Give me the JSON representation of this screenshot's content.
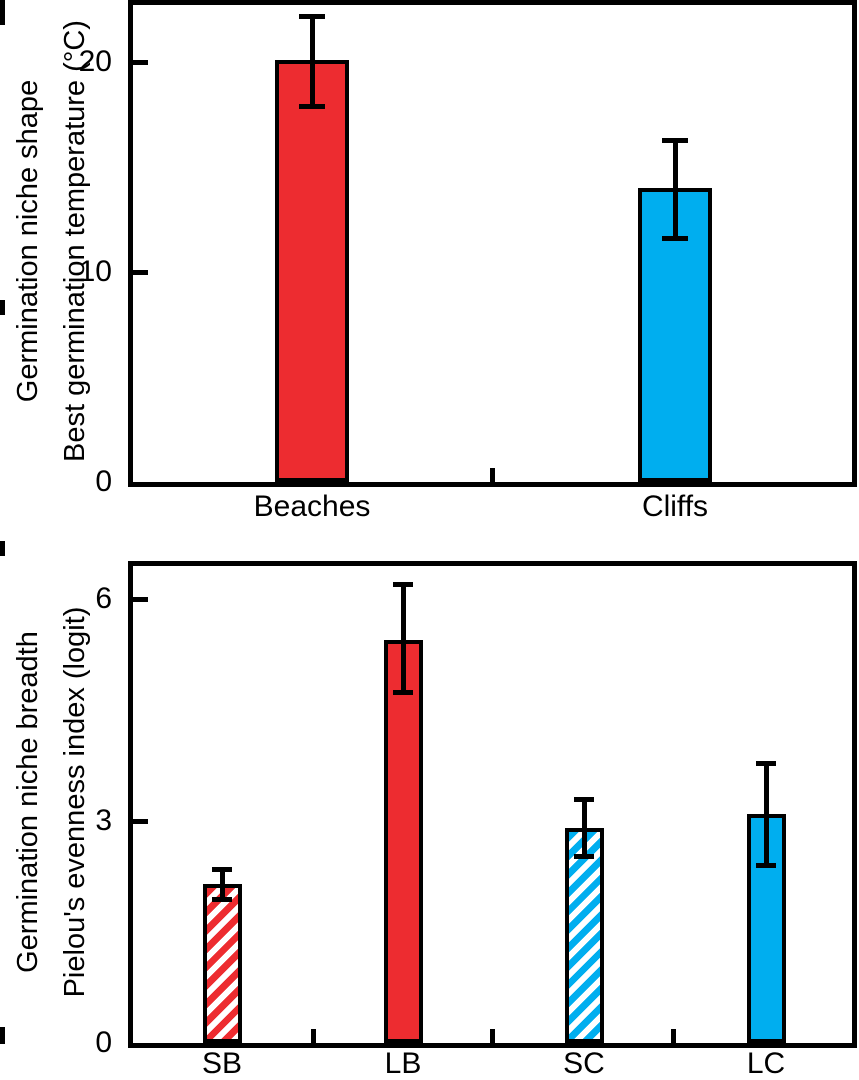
{
  "figure": {
    "background": "#ffffff",
    "ink": "#000000",
    "beach_red": "#ED2C30",
    "cliff_blue": "#00AEEF"
  },
  "chart_data": [
    {
      "type": "bar",
      "panel": "top",
      "title": "",
      "xlabel": "",
      "ylabel_lines": [
        "Germination niche shape",
        "Best germination temperature (°C)"
      ],
      "categories": [
        "Beaches",
        "Cliffs"
      ],
      "values": [
        20.1,
        14.0
      ],
      "errors_plus": [
        2.1,
        2.3
      ],
      "errors_minus": [
        2.2,
        2.4
      ],
      "bar_styles": [
        "solid-red",
        "solid-blue"
      ],
      "yticks": [
        0,
        10,
        20
      ],
      "ylim": [
        0,
        22.9
      ],
      "grid": false,
      "legend": null
    },
    {
      "type": "bar",
      "panel": "bottom",
      "title": "",
      "xlabel": "",
      "ylabel_lines": [
        "Germination niche breadth",
        "Pielou's evenness index (logit)"
      ],
      "categories": [
        "SB",
        "LB",
        "SC",
        "LC"
      ],
      "values": [
        2.15,
        5.45,
        2.9,
        3.1
      ],
      "errors_plus": [
        0.2,
        0.75,
        0.4,
        0.68
      ],
      "errors_minus": [
        0.2,
        0.7,
        0.37,
        0.7
      ],
      "bar_styles": [
        "hatch-red",
        "solid-red",
        "hatch-blue",
        "solid-blue"
      ],
      "yticks": [
        0,
        3,
        6
      ],
      "ylim": [
        0,
        6.5
      ],
      "grid": false,
      "legend": null
    }
  ]
}
